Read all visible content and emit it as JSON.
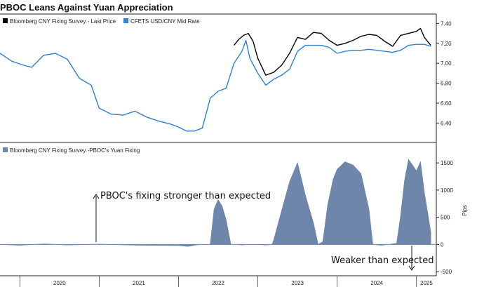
{
  "chart_data": [
    {
      "type": "line",
      "title": "PBOC Leans Against Yuan Appreciation",
      "ylim": [
        6.22,
        7.48
      ],
      "y_ticks": [
        "7.40",
        "7.20",
        "7.00",
        "6.80",
        "6.60",
        "6.40"
      ],
      "y_tick_values": [
        7.4,
        7.2,
        7.0,
        6.8,
        6.6,
        6.4
      ],
      "axis_side": "right",
      "grid": false,
      "legend_position": "top-left",
      "series": [
        {
          "name": "Bloomberg CNY Fixing Survey - Last Price",
          "color": "#000000",
          "x": [
            2022.7,
            2022.76,
            2022.82,
            2022.88,
            2022.94,
            2023.0,
            2023.1,
            2023.2,
            2023.3,
            2023.4,
            2023.5,
            2023.6,
            2023.7,
            2023.8,
            2023.9,
            2024.0,
            2024.1,
            2024.2,
            2024.3,
            2024.4,
            2024.5,
            2024.6,
            2024.7,
            2024.8,
            2024.9,
            2025.0,
            2025.05,
            2025.1,
            2025.15,
            2025.18
          ],
          "values": [
            7.18,
            7.24,
            7.28,
            7.3,
            7.22,
            7.05,
            6.88,
            6.91,
            6.98,
            7.1,
            7.26,
            7.24,
            7.31,
            7.3,
            7.23,
            7.18,
            7.2,
            7.23,
            7.27,
            7.29,
            7.28,
            7.22,
            7.17,
            7.28,
            7.3,
            7.32,
            7.35,
            7.26,
            7.21,
            7.18
          ]
        },
        {
          "name": "CFETS USD/CNY Mid Rate",
          "color": "#2f7fd0",
          "x": [
            2019.75,
            2019.9,
            2020.05,
            2020.15,
            2020.3,
            2020.45,
            2020.6,
            2020.75,
            2020.9,
            2021.0,
            2021.15,
            2021.3,
            2021.45,
            2021.6,
            2021.75,
            2021.9,
            2022.0,
            2022.1,
            2022.2,
            2022.3,
            2022.4,
            2022.5,
            2022.6,
            2022.7,
            2022.8,
            2022.85,
            2022.9,
            2023.0,
            2023.1,
            2023.2,
            2023.3,
            2023.4,
            2023.5,
            2023.6,
            2023.7,
            2023.8,
            2023.9,
            2024.0,
            2024.1,
            2024.2,
            2024.3,
            2024.4,
            2024.5,
            2024.6,
            2024.7,
            2024.8,
            2024.9,
            2025.0,
            2025.1,
            2025.18
          ],
          "values": [
            7.1,
            7.02,
            6.98,
            6.96,
            7.08,
            7.1,
            7.04,
            6.85,
            6.78,
            6.55,
            6.49,
            6.48,
            6.52,
            6.46,
            6.42,
            6.39,
            6.36,
            6.32,
            6.32,
            6.35,
            6.65,
            6.72,
            6.75,
            7.0,
            7.12,
            7.23,
            7.05,
            6.9,
            6.78,
            6.84,
            6.88,
            6.94,
            7.12,
            7.18,
            7.18,
            7.18,
            7.16,
            7.1,
            7.12,
            7.13,
            7.13,
            7.14,
            7.13,
            7.12,
            7.11,
            7.13,
            7.18,
            7.19,
            7.19,
            7.17
          ]
        }
      ]
    },
    {
      "type": "bar",
      "ylabel": "Pips",
      "ylim": [
        -550,
        1850
      ],
      "y_ticks": [
        "1500",
        "1000",
        "500",
        "0",
        "-500"
      ],
      "y_tick_values": [
        1500,
        1000,
        500,
        0,
        -500
      ],
      "axis_side": "right",
      "grid": false,
      "legend_position": "top-left",
      "series": [
        {
          "name": "Bloomberg CNY Fixing Survey -PBOC's Yuan Fixing",
          "color": "#6e86aa",
          "x": [
            2019.75,
            2020.0,
            2020.3,
            2020.6,
            2021.0,
            2021.5,
            2022.0,
            2022.12,
            2022.22,
            2022.3,
            2022.4,
            2022.45,
            2022.5,
            2022.55,
            2022.6,
            2022.66,
            2022.73,
            2022.8,
            2022.88,
            2023.0,
            2023.1,
            2023.18,
            2023.2,
            2023.3,
            2023.4,
            2023.5,
            2023.6,
            2023.7,
            2023.76,
            2023.82,
            2023.88,
            2023.95,
            2024.0,
            2024.1,
            2024.2,
            2024.3,
            2024.4,
            2024.45,
            2024.55,
            2024.65,
            2024.75,
            2024.8,
            2024.85,
            2024.9,
            2024.95,
            2025.0,
            2025.05,
            2025.1,
            2025.15,
            2025.18
          ],
          "values": [
            0,
            -15,
            10,
            -10,
            5,
            -15,
            -20,
            -35,
            -10,
            0,
            0,
            650,
            820,
            700,
            450,
            0,
            0,
            -10,
            0,
            0,
            -10,
            0,
            80,
            620,
            1150,
            1500,
            900,
            400,
            0,
            50,
            720,
            1200,
            1380,
            1520,
            1460,
            1300,
            650,
            0,
            -15,
            0,
            20,
            520,
            1180,
            1560,
            1460,
            1350,
            1520,
            950,
            500,
            220
          ]
        }
      ],
      "annotations": [
        {
          "text": "PBOC's fixing stronger than expected"
        },
        {
          "text": "Weaker than expected"
        }
      ]
    }
  ],
  "x_axis": {
    "range": [
      2019.75,
      2025.25
    ],
    "labels": [
      "2020",
      "2021",
      "2022",
      "2023",
      "2024",
      "2025"
    ],
    "label_x": [
      2020.0,
      2021.0,
      2022.0,
      2023.0,
      2024.0,
      2025.0
    ]
  }
}
